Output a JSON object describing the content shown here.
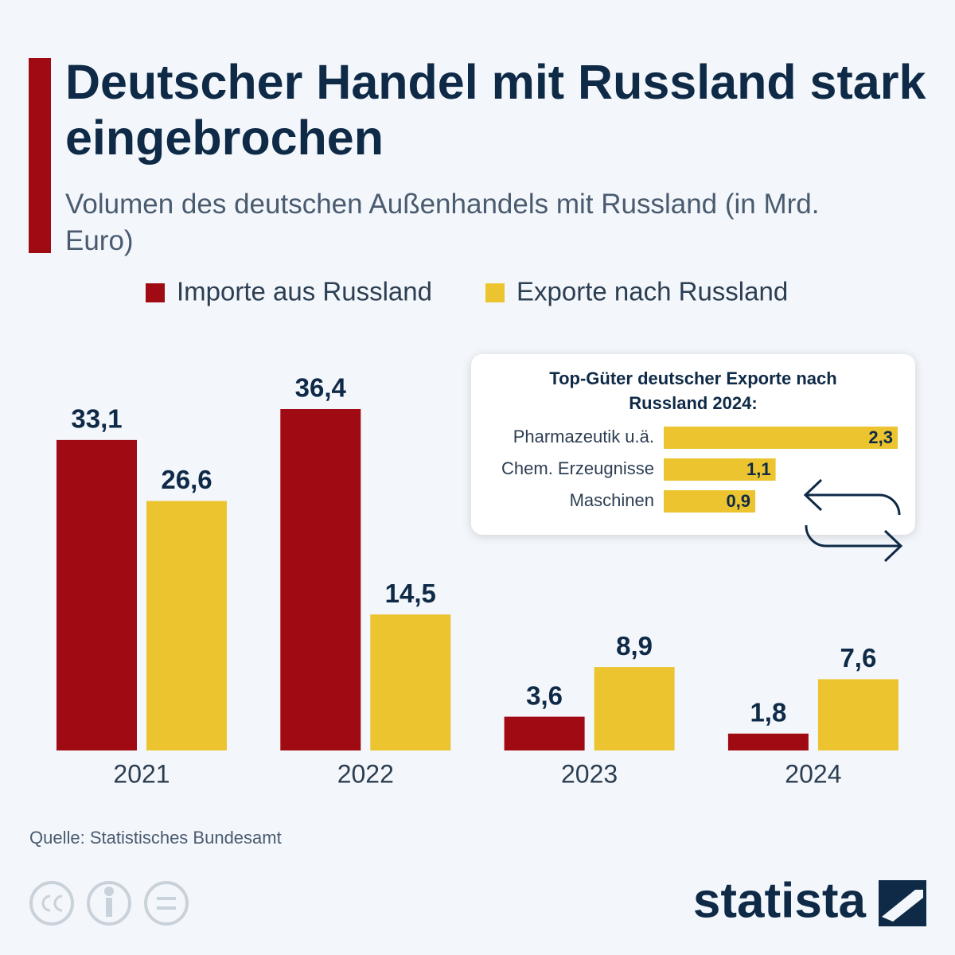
{
  "chart_data": [
    {
      "type": "bar",
      "title": "Deutscher Handel mit Russland stark eingebrochen",
      "subtitle": "Volumen des deutschen Außenhandels mit Russland (in Mrd. Euro)",
      "categories": [
        "2021",
        "2022",
        "2023",
        "2024"
      ],
      "series": [
        {
          "name": "Importe aus Russland",
          "color": "#a00a12",
          "values": [
            33.1,
            36.4,
            3.6,
            1.8
          ],
          "value_labels": [
            "33,1",
            "36,4",
            "3,6",
            "1,8"
          ]
        },
        {
          "name": "Exporte nach Russland",
          "color": "#ebc42f",
          "values": [
            26.6,
            14.5,
            8.9,
            7.6
          ],
          "value_labels": [
            "26,6",
            "14,5",
            "8,9",
            "7,6"
          ]
        }
      ]
    },
    {
      "type": "barh",
      "title": "Top-Güter deutscher Exporte nach Russland 2024:",
      "categories": [
        "Pharmazeutik u.ä.",
        "Chem. Erzeugnisse",
        "Maschinen"
      ],
      "values": [
        2.3,
        1.1,
        0.9
      ],
      "value_labels": [
        "2,3",
        "1,1",
        "0,9"
      ],
      "color": "#ebc42f"
    }
  ],
  "source": "Quelle: Statistisches Bundesamt",
  "brand": "statista"
}
